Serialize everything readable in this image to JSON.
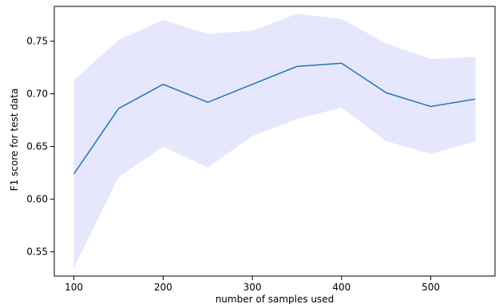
{
  "chart_data": {
    "type": "line",
    "title": "",
    "xlabel": "number of samples used",
    "ylabel": "F1 score for test data",
    "xlim": [
      78,
      572
    ],
    "ylim": [
      0.527,
      0.783
    ],
    "grid": false,
    "legend": "none",
    "x": [
      100,
      150,
      200,
      250,
      300,
      350,
      400,
      450,
      500,
      550
    ],
    "xticks": [
      100,
      200,
      300,
      400,
      500
    ],
    "yticks": [
      0.55,
      0.6,
      0.65,
      0.7,
      0.75
    ],
    "xtick_labels": [
      "100",
      "200",
      "300",
      "400",
      "500"
    ],
    "ytick_labels": [
      "0.55",
      "0.60",
      "0.65",
      "0.70",
      "0.75"
    ],
    "series": [
      {
        "values": [
          0.624,
          0.686,
          0.709,
          0.692,
          0.709,
          0.726,
          0.729,
          0.701,
          0.688,
          0.695
        ],
        "upper": [
          0.713,
          0.751,
          0.77,
          0.757,
          0.76,
          0.776,
          0.771,
          0.748,
          0.733,
          0.735
        ],
        "lower": [
          0.535,
          0.621,
          0.65,
          0.63,
          0.66,
          0.676,
          0.687,
          0.655,
          0.643,
          0.655
        ],
        "color": "#1f77b4",
        "band_color": "#e6e6fc"
      }
    ]
  }
}
